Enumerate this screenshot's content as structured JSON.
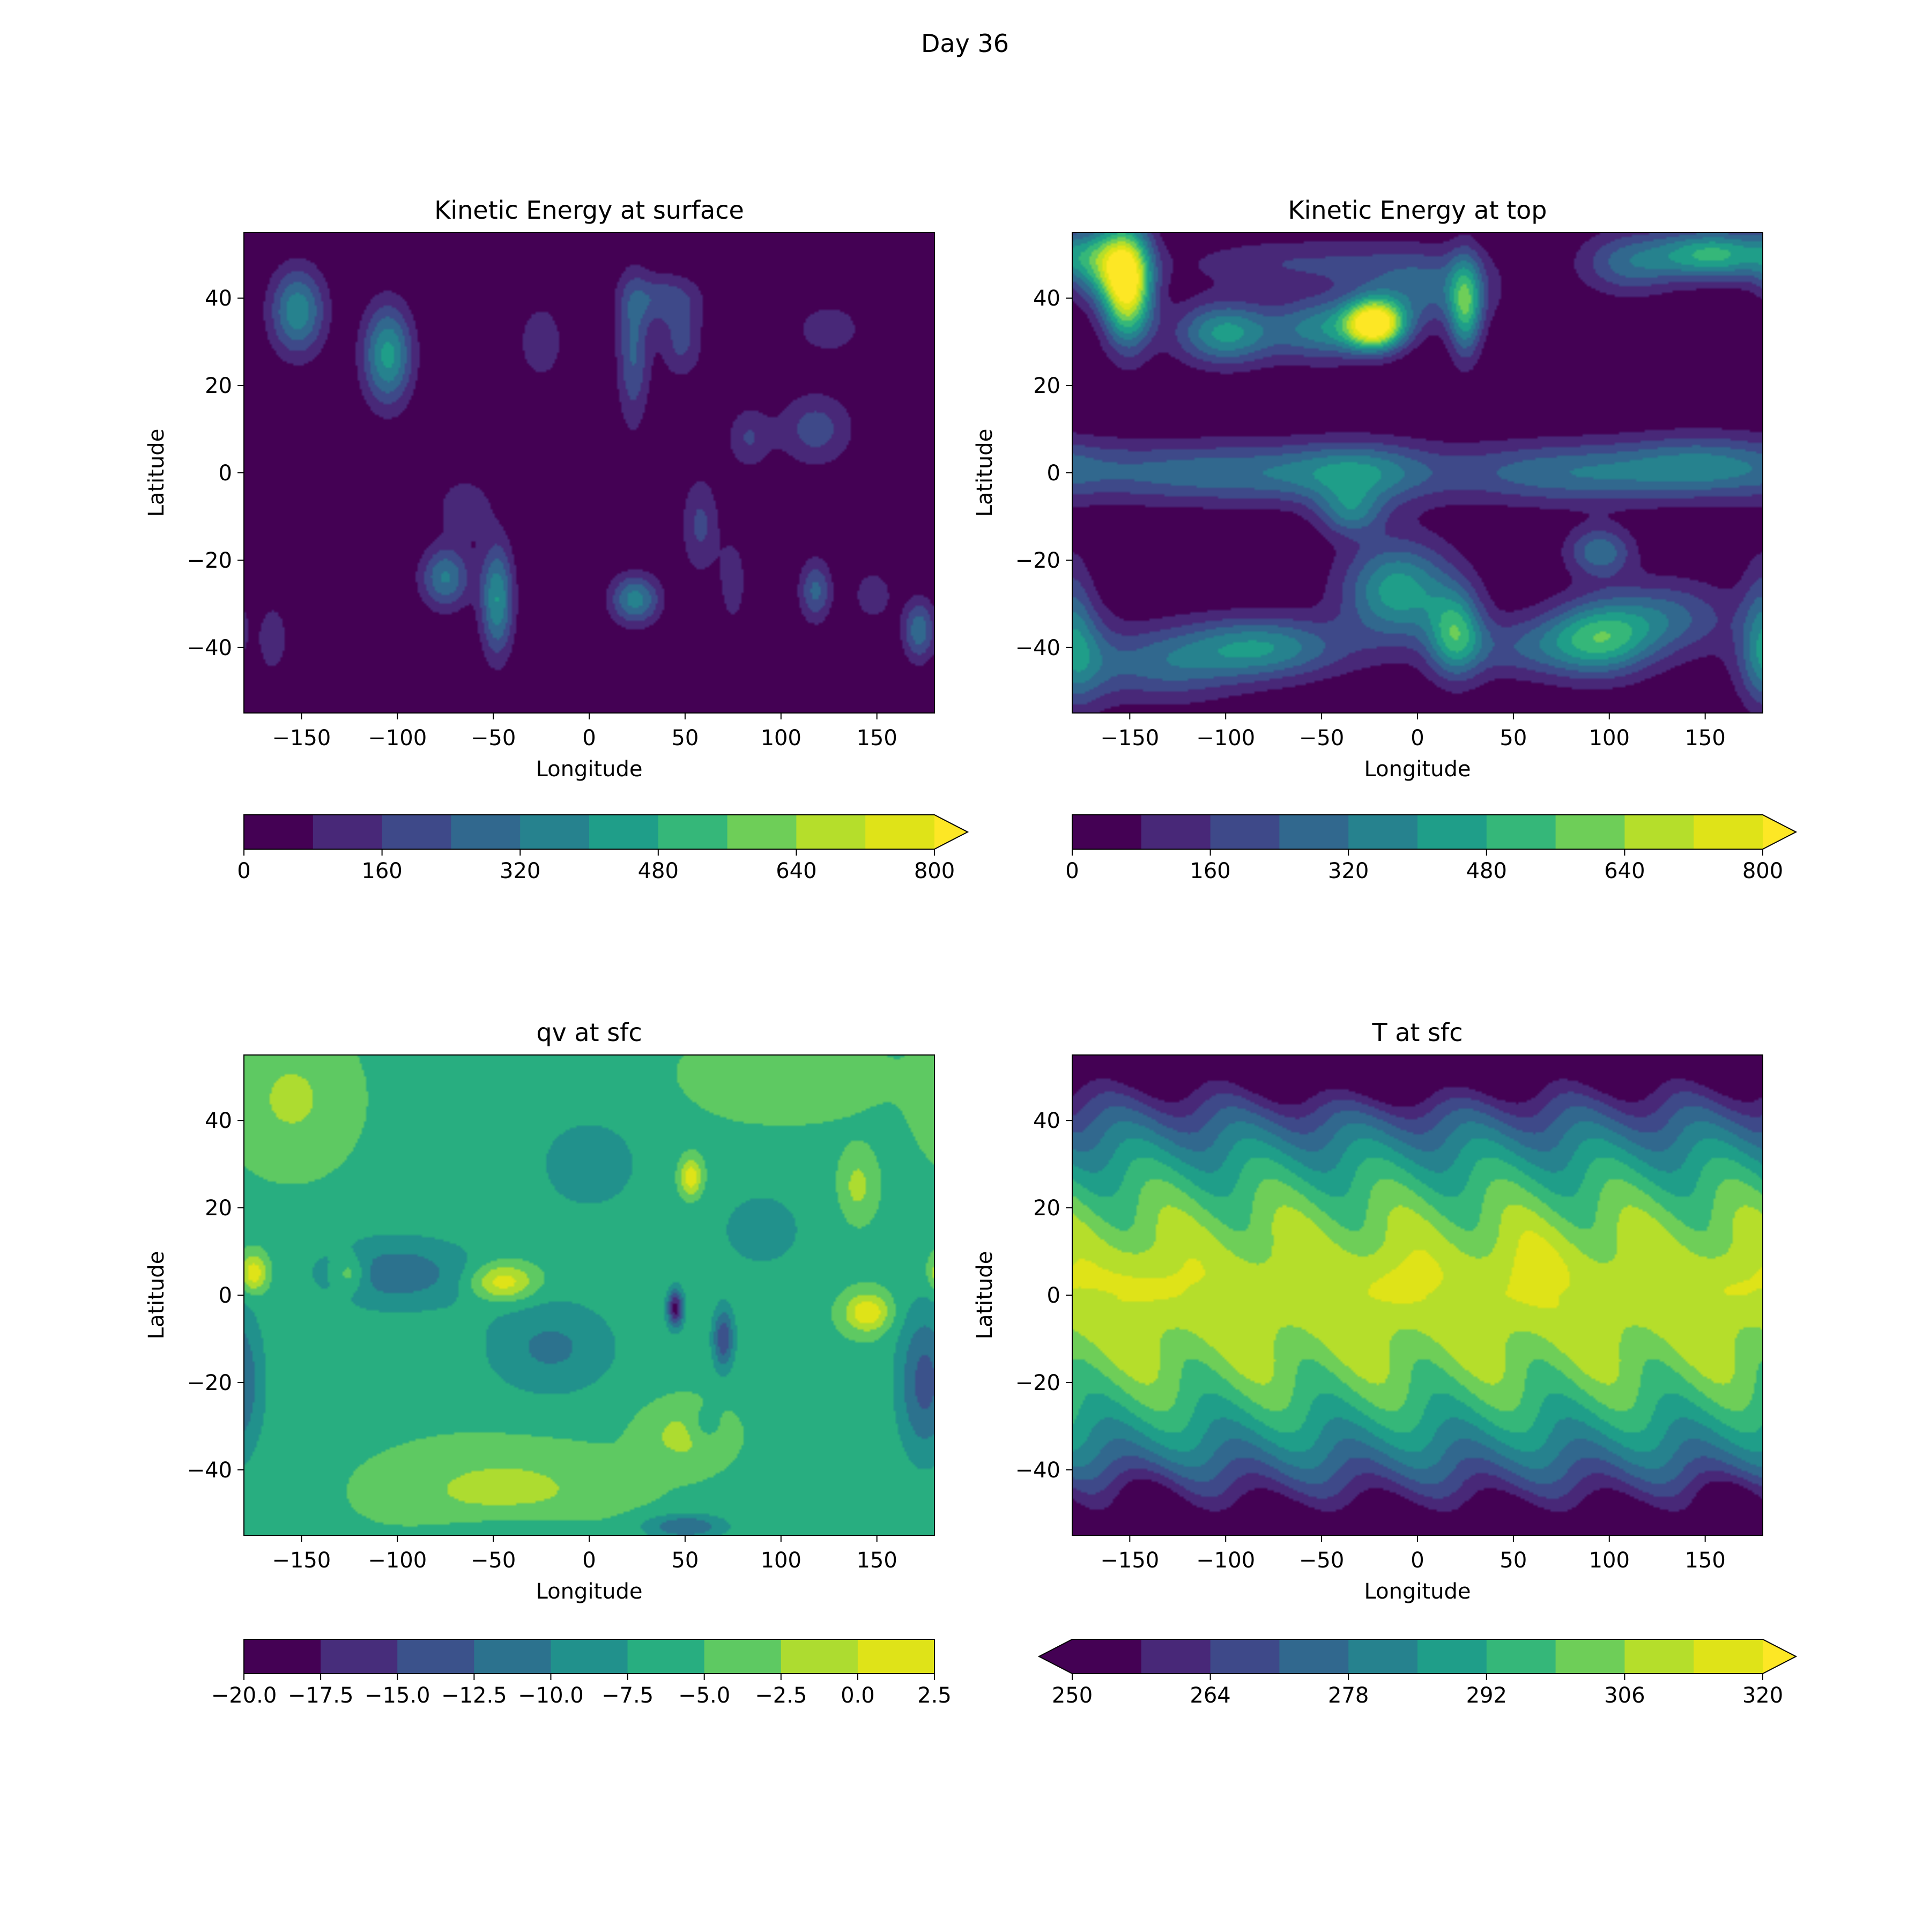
{
  "figure": {
    "suptitle": "Day 36"
  },
  "chart_data": [
    {
      "type": "heatmap",
      "title": "Kinetic Energy at surface",
      "xlabel": "Longitude",
      "ylabel": "Latitude",
      "xlim": [
        -180,
        180
      ],
      "ylim": [
        -55,
        55
      ],
      "xticks": [
        -150,
        -100,
        -50,
        0,
        50,
        100,
        150
      ],
      "xtick_labels": [
        "−150",
        "−100",
        "−50",
        "0",
        "50",
        "100",
        "150"
      ],
      "yticks": [
        -40,
        -20,
        0,
        20,
        40
      ],
      "ytick_labels": [
        "−40",
        "−20",
        "0",
        "20",
        "40"
      ],
      "colorbar": {
        "levels": [
          0,
          80,
          160,
          240,
          320,
          400,
          480,
          560,
          640,
          720,
          800
        ],
        "tick_values": [
          0,
          160,
          320,
          480,
          640,
          800
        ],
        "tick_labels": [
          "0",
          "160",
          "320",
          "480",
          "640",
          "800"
        ],
        "extend": "max",
        "colors": [
          "#440154",
          "#482878",
          "#3e4989",
          "#31688e",
          "#26828e",
          "#1f9e89",
          "#35b779",
          "#6ece58",
          "#b5de2b",
          "#dfe318"
        ],
        "over_color": "#fde725"
      },
      "blobs": [
        {
          "lon": -152,
          "lat": 37,
          "amp": 380,
          "sx": 10,
          "sy": 7
        },
        {
          "lon": -105,
          "lat": 27,
          "amp": 430,
          "sx": 9,
          "sy": 8
        },
        {
          "lon": 23,
          "lat": 28,
          "amp": 250,
          "sx": 6,
          "sy": 12
        },
        {
          "lon": 38,
          "lat": 40,
          "amp": 200,
          "sx": 14,
          "sy": 4
        },
        {
          "lon": 48,
          "lat": 30,
          "amp": 180,
          "sx": 8,
          "sy": 6
        },
        {
          "lon": -25,
          "lat": 30,
          "amp": 160,
          "sx": 8,
          "sy": 6
        },
        {
          "lon": 118,
          "lat": 10,
          "amp": 200,
          "sx": 14,
          "sy": 6
        },
        {
          "lon": 83,
          "lat": 8,
          "amp": 160,
          "sx": 8,
          "sy": 5
        },
        {
          "lon": 125,
          "lat": 33,
          "amp": 150,
          "sx": 12,
          "sy": 4
        },
        {
          "lon": -48,
          "lat": -29,
          "amp": 400,
          "sx": 6,
          "sy": 9
        },
        {
          "lon": -75,
          "lat": -24,
          "amp": 330,
          "sx": 9,
          "sy": 5
        },
        {
          "lon": 24,
          "lat": -29,
          "amp": 360,
          "sx": 9,
          "sy": 4
        },
        {
          "lon": 118,
          "lat": -27,
          "amp": 260,
          "sx": 6,
          "sy": 5
        },
        {
          "lon": 172,
          "lat": -36,
          "amp": 300,
          "sx": 6,
          "sy": 5
        },
        {
          "lon": 58,
          "lat": -12,
          "amp": 180,
          "sx": 7,
          "sy": 8
        },
        {
          "lon": -65,
          "lat": -8,
          "amp": 150,
          "sx": 10,
          "sy": 5
        },
        {
          "lon": 148,
          "lat": -28,
          "amp": 150,
          "sx": 7,
          "sy": 4
        },
        {
          "lon": -165,
          "lat": -38,
          "amp": 140,
          "sx": 6,
          "sy": 6
        },
        {
          "lon": 75,
          "lat": -25,
          "amp": 140,
          "sx": 5,
          "sy": 7
        }
      ]
    },
    {
      "type": "heatmap",
      "title": "Kinetic Energy at top",
      "xlabel": "Longitude",
      "ylabel": "Latitude",
      "xlim": [
        -180,
        180
      ],
      "ylim": [
        -55,
        55
      ],
      "xticks": [
        -150,
        -100,
        -50,
        0,
        50,
        100,
        150
      ],
      "xtick_labels": [
        "−150",
        "−100",
        "−50",
        "0",
        "50",
        "100",
        "150"
      ],
      "yticks": [
        -40,
        -20,
        0,
        20,
        40
      ],
      "ytick_labels": [
        "−40",
        "−20",
        "0",
        "20",
        "40"
      ],
      "colorbar": {
        "levels": [
          0,
          80,
          160,
          240,
          320,
          400,
          480,
          560,
          640,
          720,
          800
        ],
        "tick_values": [
          0,
          160,
          320,
          480,
          640,
          800
        ],
        "tick_labels": [
          "0",
          "160",
          "320",
          "480",
          "640",
          "800"
        ],
        "extend": "max",
        "colors": [
          "#440154",
          "#482878",
          "#3e4989",
          "#31688e",
          "#26828e",
          "#1f9e89",
          "#35b779",
          "#6ece58",
          "#b5de2b",
          "#dfe318"
        ],
        "over_color": "#fde725"
      },
      "blobs": [
        {
          "lon": -151,
          "lat": 43,
          "amp": 820,
          "sx": 9,
          "sy": 9
        },
        {
          "lon": -165,
          "lat": 48,
          "amp": 400,
          "sx": 12,
          "sy": 6
        },
        {
          "lon": -22,
          "lat": 34,
          "amp": 880,
          "sx": 11,
          "sy": 4
        },
        {
          "lon": -50,
          "lat": 33,
          "amp": 350,
          "sx": 18,
          "sy": 5
        },
        {
          "lon": -100,
          "lat": 32,
          "amp": 430,
          "sx": 18,
          "sy": 5
        },
        {
          "lon": 25,
          "lat": 38,
          "amp": 450,
          "sx": 6,
          "sy": 8
        },
        {
          "lon": 5,
          "lat": 42,
          "amp": 250,
          "sx": 25,
          "sy": 6
        },
        {
          "lon": 155,
          "lat": 50,
          "amp": 500,
          "sx": 22,
          "sy": 4
        },
        {
          "lon": 110,
          "lat": 48,
          "amp": 260,
          "sx": 18,
          "sy": 5
        },
        {
          "lon": -60,
          "lat": 48,
          "amp": 160,
          "sx": 45,
          "sy": 4
        },
        {
          "lon": -100,
          "lat": 0,
          "amp": 300,
          "sx": 65,
          "sy": 5
        },
        {
          "lon": -30,
          "lat": 0,
          "amp": 250,
          "sx": 25,
          "sy": 5
        },
        {
          "lon": 80,
          "lat": 0,
          "amp": 300,
          "sx": 45,
          "sy": 5
        },
        {
          "lon": 150,
          "lat": 2,
          "amp": 230,
          "sx": 30,
          "sy": 5
        },
        {
          "lon": -35,
          "lat": -9,
          "amp": 280,
          "sx": 12,
          "sy": 4
        },
        {
          "lon": 95,
          "lat": -18,
          "amp": 300,
          "sx": 12,
          "sy": 4
        },
        {
          "lon": -10,
          "lat": -27,
          "amp": 450,
          "sx": 20,
          "sy": 8
        },
        {
          "lon": 20,
          "lat": -37,
          "amp": 440,
          "sx": 10,
          "sy": 7
        },
        {
          "lon": -80,
          "lat": -40,
          "amp": 380,
          "sx": 30,
          "sy": 5
        },
        {
          "lon": -135,
          "lat": -44,
          "amp": 250,
          "sx": 30,
          "sy": 6
        },
        {
          "lon": -175,
          "lat": -42,
          "amp": 200,
          "sx": 12,
          "sy": 8
        },
        {
          "lon": 95,
          "lat": -38,
          "amp": 450,
          "sx": 20,
          "sy": 6
        },
        {
          "lon": 130,
          "lat": -33,
          "amp": 250,
          "sx": 25,
          "sy": 6
        },
        {
          "lon": 55,
          "lat": -40,
          "amp": 200,
          "sx": 25,
          "sy": 5
        },
        {
          "lon": -180,
          "lat": -35,
          "amp": 200,
          "sx": 8,
          "sy": 12
        }
      ]
    },
    {
      "type": "heatmap",
      "title": "qv at sfc",
      "xlabel": "Longitude",
      "ylabel": "Latitude",
      "xlim": [
        -180,
        180
      ],
      "ylim": [
        -55,
        55
      ],
      "xticks": [
        -150,
        -100,
        -50,
        0,
        50,
        100,
        150
      ],
      "xtick_labels": [
        "−150",
        "−100",
        "−50",
        "0",
        "50",
        "100",
        "150"
      ],
      "yticks": [
        -40,
        -20,
        0,
        20,
        40
      ],
      "ytick_labels": [
        "−40",
        "−20",
        "0",
        "20",
        "40"
      ],
      "colorbar": {
        "levels": [
          -20,
          -17.5,
          -15,
          -12.5,
          -10,
          -7.5,
          -5,
          -2.5,
          0,
          2.5
        ],
        "tick_values": [
          -20,
          -17.5,
          -15,
          -12.5,
          -10,
          -7.5,
          -5,
          -2.5,
          0,
          2.5
        ],
        "tick_labels": [
          "−20.0",
          "−17.5",
          "−15.0",
          "−12.5",
          "−10.0",
          "−7.5",
          "−5.0",
          "−2.5",
          "0.0",
          "2.5"
        ],
        "extend": "neither",
        "colors": [
          "#440154",
          "#472d7b",
          "#3b528b",
          "#2c728e",
          "#21918c",
          "#28ae80",
          "#5ec962",
          "#addc30",
          "#dfe318"
        ]
      },
      "base": -5.5,
      "blobs": [
        {
          "lon": -155,
          "lat": 45,
          "amp": 3.5,
          "sx": 20,
          "sy": 10
        },
        {
          "lon": -45,
          "lat": -45,
          "amp": 4,
          "sx": 40,
          "sy": 7
        },
        {
          "lon": 100,
          "lat": 50,
          "amp": 3,
          "sx": 30,
          "sy": 6
        },
        {
          "lon": -175,
          "lat": 5,
          "amp": 8,
          "sx": 5,
          "sy": 3
        },
        {
          "lon": -45,
          "lat": 3,
          "amp": 8,
          "sx": 12,
          "sy": 3
        },
        {
          "lon": 145,
          "lat": -4,
          "amp": 8,
          "sx": 8,
          "sy": 3
        },
        {
          "lon": 53,
          "lat": 27,
          "amp": 8,
          "sx": 4,
          "sy": 3
        },
        {
          "lon": -125,
          "lat": 5,
          "amp": 5,
          "sx": 6,
          "sy": 3
        },
        {
          "lon": 50,
          "lat": -32,
          "amp": 4,
          "sx": 15,
          "sy": 5
        },
        {
          "lon": 140,
          "lat": 25,
          "amp": 4,
          "sx": 6,
          "sy": 5
        },
        {
          "lon": -100,
          "lat": 5,
          "amp": -6,
          "sx": 30,
          "sy": 6
        },
        {
          "lon": -20,
          "lat": -12,
          "amp": -5,
          "sx": 25,
          "sy": 8
        },
        {
          "lon": 45,
          "lat": -3,
          "amp": -13,
          "sx": 3,
          "sy": 3
        },
        {
          "lon": 70,
          "lat": -10,
          "amp": -9,
          "sx": 4,
          "sy": 5
        },
        {
          "lon": 175,
          "lat": -20,
          "amp": -8,
          "sx": 10,
          "sy": 12
        },
        {
          "lon": 60,
          "lat": -30,
          "amp": -3,
          "sx": 6,
          "sy": 3
        },
        {
          "lon": -40,
          "lat": -55,
          "amp": -3,
          "sx": 30,
          "sy": 4
        },
        {
          "lon": 50,
          "lat": -53,
          "amp": -7,
          "sx": 15,
          "sy": 2
        },
        {
          "lon": 0,
          "lat": 30,
          "amp": -3,
          "sx": 25,
          "sy": 10
        },
        {
          "lon": 90,
          "lat": 15,
          "amp": -3,
          "sx": 20,
          "sy": 8
        }
      ]
    },
    {
      "type": "heatmap",
      "title": "T at sfc",
      "xlabel": "Longitude",
      "ylabel": "Latitude",
      "xlim": [
        -180,
        180
      ],
      "ylim": [
        -55,
        55
      ],
      "xticks": [
        -150,
        -100,
        -50,
        0,
        50,
        100,
        150
      ],
      "xtick_labels": [
        "−150",
        "−100",
        "−50",
        "0",
        "50",
        "100",
        "150"
      ],
      "yticks": [
        -40,
        -20,
        0,
        20,
        40
      ],
      "ytick_labels": [
        "−40",
        "−20",
        "0",
        "20",
        "40"
      ],
      "colorbar": {
        "levels": [
          250,
          257,
          264,
          271,
          278,
          285,
          292,
          299,
          306,
          313,
          320
        ],
        "tick_values": [
          250,
          264,
          278,
          292,
          306,
          320
        ],
        "tick_labels": [
          "250",
          "264",
          "278",
          "292",
          "306",
          "320"
        ],
        "extend": "both",
        "colors": [
          "#440154",
          "#482878",
          "#3e4989",
          "#31688e",
          "#26828e",
          "#1f9e89",
          "#35b779",
          "#6ece58",
          "#b5de2b",
          "#dfe318"
        ],
        "under_color": "#440154",
        "over_color": "#fde725"
      },
      "profile": {
        "peak": 310,
        "drop": 0.024,
        "wave_amp": 6,
        "wave_count": 6
      },
      "blobs": [
        {
          "lon": -10,
          "lat": 3,
          "amp": 6,
          "sx": 15,
          "sy": 5
        },
        {
          "lon": 60,
          "lat": 5,
          "amp": 6,
          "sx": 15,
          "sy": 7
        },
        {
          "lon": -140,
          "lat": 3,
          "amp": 5,
          "sx": 20,
          "sy": 5
        },
        {
          "lon": 165,
          "lat": 3,
          "amp": 4,
          "sx": 15,
          "sy": 4
        },
        {
          "lon": -20,
          "lat": 50,
          "amp": -7,
          "sx": 40,
          "sy": 5
        },
        {
          "lon": -140,
          "lat": -45,
          "amp": -6,
          "sx": 15,
          "sy": 4
        },
        {
          "lon": 165,
          "lat": -45,
          "amp": -6,
          "sx": 15,
          "sy": 3
        }
      ]
    }
  ]
}
